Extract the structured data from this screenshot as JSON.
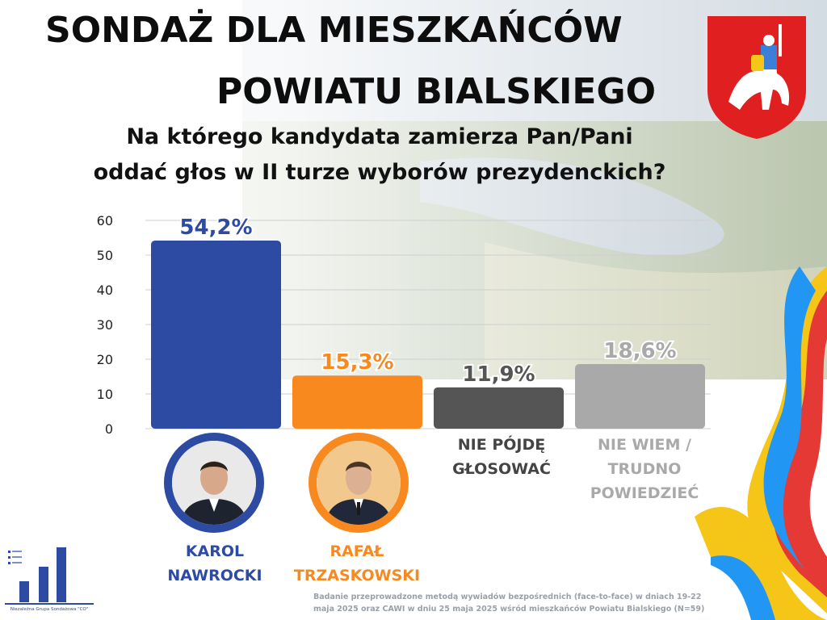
{
  "header": {
    "title_line1": "SONDAŻ DLA MIESZKAŃCÓW",
    "title_line2": "POWIATU BIALSKIEGO",
    "question_line1": "Na którego kandydata zamierza Pan/Pani",
    "question_line2": "oddać głos w II turze wyborów prezydenckich?"
  },
  "chart_data": {
    "type": "bar",
    "categories": [
      "KAROL NAWROCKI",
      "RAFAŁ TRZASKOWSKI",
      "NIE PÓJDĘ GŁOSOWAĆ",
      "NIE WIEM / TRUDNO POWIEDZIEĆ"
    ],
    "values": [
      54.2,
      15.3,
      11.9,
      18.6
    ],
    "value_labels": [
      "54,2%",
      "15,3%",
      "11,9%",
      "18,6%"
    ],
    "colors": [
      "#2e4ba3",
      "#f7891f",
      "#555555",
      "#a9a9a9"
    ],
    "yticks": [
      "0",
      "10",
      "20",
      "30",
      "40",
      "50",
      "60"
    ],
    "ylim": [
      0,
      60
    ],
    "grid": true
  },
  "labels": {
    "cand1_line1": "KAROL",
    "cand1_line2": "NAWROCKI",
    "cand2_line1": "RAFAŁ",
    "cand2_line2": "TRZASKOWSKI",
    "opt3_line1": "NIE PÓJDĘ",
    "opt3_line2": "GŁOSOWAĆ",
    "opt4_line1": "NIE WIEM /",
    "opt4_line2": "TRUDNO",
    "opt4_line3": "POWIEDZIEĆ"
  },
  "footnote": {
    "line1": "Badanie przeprowadzone metodą wywiadów bezpośrednich (face-to-face) w dniach 19-22",
    "line2": "maja 2025 oraz CAWI w dniu 25 maja 2025 wśród mieszkańców Powiatu Bialskiego (N=59)"
  },
  "logo": {
    "text": "Niezależna Grupa Sondażowa \"CO\""
  },
  "colors": {
    "accent_blue": "#2e4ba3",
    "accent_orange": "#f7891f",
    "dark_gray": "#555555",
    "light_gray": "#a9a9a9"
  }
}
